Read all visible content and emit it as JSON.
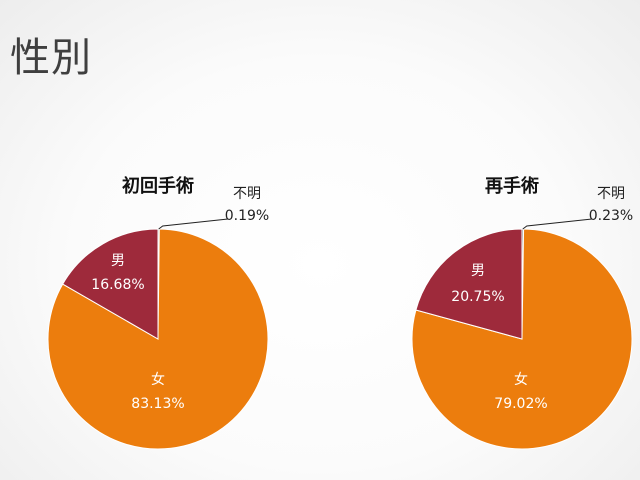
{
  "slide": {
    "title": "性別"
  },
  "colors": {
    "female": "#EC7D0D",
    "male": "#9E2A3B",
    "unknown": "#7F7F7F"
  },
  "chart_data": [
    {
      "type": "pie",
      "title": "初回手術",
      "start_angle_deg": 0,
      "direction": "clockwise",
      "slices": [
        {
          "label": "不明",
          "value": 0.19,
          "value_label": "0.19%",
          "color": "#7F7F7F"
        },
        {
          "label": "女",
          "value": 83.13,
          "value_label": "83.13%",
          "color": "#EC7D0D"
        },
        {
          "label": "男",
          "value": 16.68,
          "value_label": "16.68%",
          "color": "#9E2A3B"
        }
      ]
    },
    {
      "type": "pie",
      "title": "再手術",
      "start_angle_deg": 0,
      "direction": "clockwise",
      "slices": [
        {
          "label": "不明",
          "value": 0.23,
          "value_label": "0.23%",
          "color": "#7F7F7F"
        },
        {
          "label": "女",
          "value": 79.02,
          "value_label": "79.02%",
          "color": "#EC7D0D"
        },
        {
          "label": "男",
          "value": 20.75,
          "value_label": "20.75%",
          "color": "#9E2A3B"
        }
      ]
    }
  ]
}
